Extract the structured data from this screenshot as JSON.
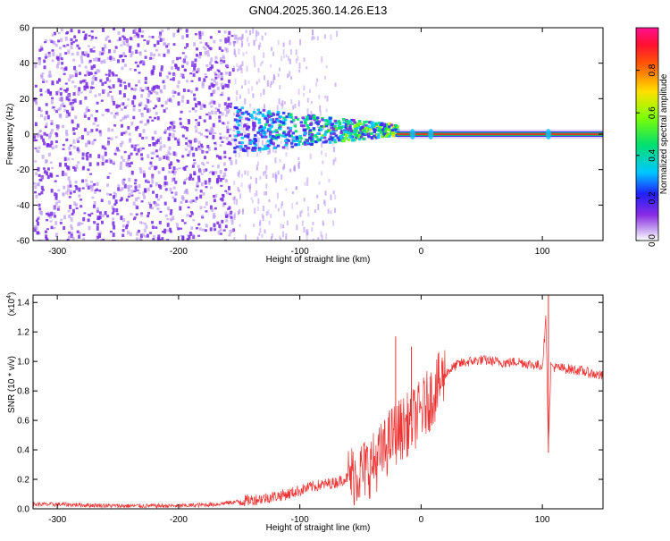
{
  "title": "GN04.2025.360.14.26.E13",
  "colors": {
    "signal": "#ee3333",
    "spectro_dot": "#7a2be8",
    "spectro_light": "#b490f0",
    "line_green": "#22cc44",
    "line_red": "#ff2020"
  },
  "chart_data": [
    {
      "type": "heatmap",
      "name": "spectrogram",
      "title": "GN04.2025.360.14.26.E13",
      "xlabel": "Height of straight line (km)",
      "ylabel": "Frequency (Hz)",
      "xlim": [
        -320,
        150
      ],
      "ylim": [
        -60,
        60
      ],
      "xticks": [
        -300,
        -200,
        -100,
        0,
        100
      ],
      "yticks": [
        -60,
        -40,
        -20,
        0,
        20,
        40,
        60
      ],
      "colorbar": {
        "label": "Normalized spectral amplitude",
        "range": [
          0.0,
          1.0
        ],
        "ticks": [
          "0.0",
          "0.2",
          "0.4",
          "0.6",
          "0.8"
        ],
        "tick_values": [
          0.0,
          0.2,
          0.4,
          0.6,
          0.8
        ]
      },
      "regions": [
        {
          "description": "dense broadband noise",
          "x_range": [
            -320,
            -155
          ],
          "freq_range": [
            -60,
            60
          ],
          "amplitude": 0.05
        },
        {
          "description": "sparse faint noise",
          "x_range": [
            -155,
            -70
          ],
          "freq_range": [
            -60,
            60
          ],
          "amplitude": 0.02
        },
        {
          "description": "low-frequency band",
          "x_range": [
            -155,
            -20
          ],
          "freq_range": [
            -8,
            15
          ],
          "amplitude": 0.3
        },
        {
          "description": "steady line",
          "x_range": [
            -20,
            150
          ],
          "freq_range": [
            -1,
            1
          ],
          "amplitude": 0.9
        }
      ]
    },
    {
      "type": "line",
      "name": "snr",
      "title": "",
      "xlabel": "Height of straight line (km)",
      "ylabel": "SNR (10 * v/v)",
      "y_multiplier": "(x10",
      "y_multiplier_exp": "4",
      "y_multiplier_close": ")",
      "xlim": [
        -320,
        150
      ],
      "ylim": [
        0,
        1.45
      ],
      "xticks": [
        -300,
        -200,
        -100,
        0,
        100
      ],
      "yticks": [
        0.0,
        0.2,
        0.4,
        0.6,
        0.8,
        1.0,
        1.2,
        1.4
      ],
      "ytick_labels": [
        "0.0",
        "0.2",
        "0.4",
        "0.6",
        "0.8",
        "1.0",
        "1.2",
        "1.4"
      ],
      "series": [
        {
          "name": "SNR",
          "x": [
            -320,
            -300,
            -250,
            -200,
            -170,
            -150,
            -130,
            -110,
            -90,
            -70,
            -50,
            -40,
            -30,
            -25,
            -20,
            -15,
            -10,
            -5,
            0,
            5,
            10,
            15,
            20,
            30,
            40,
            50,
            60,
            70,
            80,
            90,
            100,
            103,
            105,
            107,
            110,
            120,
            130,
            140,
            150
          ],
          "y": [
            0.03,
            0.03,
            0.02,
            0.02,
            0.03,
            0.05,
            0.07,
            0.1,
            0.15,
            0.18,
            0.25,
            0.3,
            0.4,
            0.48,
            0.52,
            0.55,
            0.58,
            0.62,
            0.66,
            0.72,
            0.78,
            0.85,
            0.92,
            0.98,
            1.0,
            1.01,
            1.0,
            0.99,
            1.0,
            0.98,
            0.97,
            1.3,
            0.4,
            0.97,
            0.96,
            0.95,
            0.94,
            0.92,
            0.9
          ],
          "spikes": [
            {
              "x": -21,
              "y": 1.17
            },
            {
              "x": -8,
              "y": 1.1
            },
            {
              "x": 105,
              "y": 1.45
            },
            {
              "x": 105,
              "y": 0.38
            }
          ]
        }
      ]
    }
  ]
}
